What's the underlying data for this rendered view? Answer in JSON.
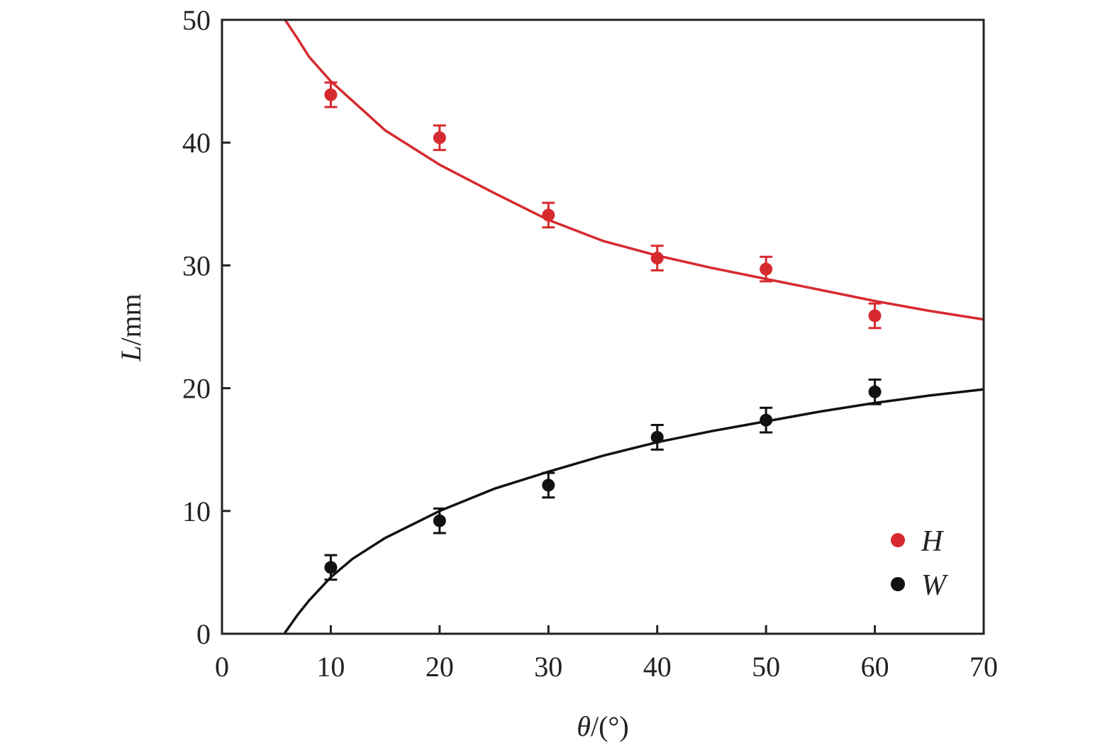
{
  "chart_data": {
    "type": "scatter",
    "xlabel": {
      "symbol": "θ",
      "unit": "/(°)"
    },
    "ylabel": {
      "symbol": "L",
      "unit": "/mm"
    },
    "xlim": [
      0,
      70
    ],
    "ylim": [
      0,
      50
    ],
    "xticks": [
      "0",
      "10",
      "20",
      "30",
      "40",
      "50",
      "60",
      "70"
    ],
    "yticks": [
      "0",
      "10",
      "20",
      "30",
      "40",
      "50"
    ],
    "grid": false,
    "legend_position": "bottom-right",
    "series": [
      {
        "name": "H",
        "color": "#d62a2f",
        "x": [
          10,
          20,
          30,
          40,
          50,
          60
        ],
        "y": [
          43.9,
          40.4,
          34.1,
          30.6,
          29.7,
          25.9
        ],
        "error": [
          1.0,
          1.0,
          1.0,
          1.0,
          1.0,
          1.0
        ],
        "fit": {
          "x": [
            5.8,
            7,
            8,
            10,
            12,
            15,
            20,
            25,
            30,
            35,
            40,
            45,
            50,
            55,
            60,
            65,
            70
          ],
          "y": [
            50.2,
            48.4,
            47.0,
            45.0,
            43.4,
            41.0,
            38.2,
            35.9,
            33.7,
            32.0,
            30.8,
            29.8,
            28.9,
            28.0,
            27.1,
            26.3,
            25.6
          ]
        }
      },
      {
        "name": "W",
        "color": "#111111",
        "x": [
          10,
          20,
          30,
          40,
          50,
          60
        ],
        "y": [
          5.4,
          9.2,
          12.1,
          16.0,
          17.4,
          19.7
        ],
        "error": [
          1.0,
          1.0,
          1.0,
          1.0,
          1.0,
          1.0
        ],
        "fit": {
          "x": [
            5.8,
            7,
            8,
            10,
            12,
            15,
            20,
            25,
            30,
            35,
            40,
            45,
            50,
            55,
            60,
            65,
            70
          ],
          "y": [
            0.1,
            1.6,
            2.7,
            4.6,
            6.1,
            7.8,
            10.0,
            11.8,
            13.2,
            14.5,
            15.6,
            16.5,
            17.3,
            18.1,
            18.8,
            19.4,
            19.9
          ]
        }
      }
    ]
  }
}
